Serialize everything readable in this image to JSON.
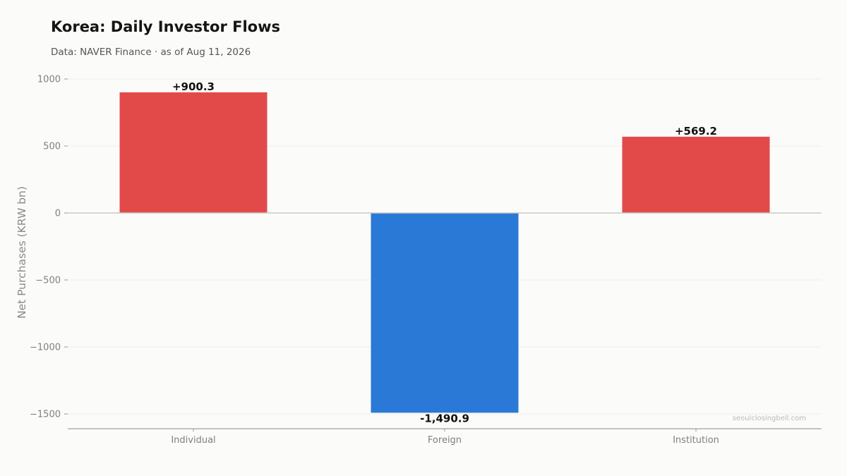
{
  "header": {
    "title": "Korea: Daily Investor Flows",
    "subtitle": "Data: NAVER Finance · as of Aug 11, 2026"
  },
  "watermark": "seoulclosingbell.com",
  "colors": {
    "positive": "#e24a4a",
    "negative": "#2a79d6",
    "grid": "#eeeeea",
    "zero_line": "#c9c9c4",
    "axis": "#8a8a8a"
  },
  "chart_data": {
    "type": "bar",
    "categories": [
      "Individual",
      "Foreign",
      "Institution"
    ],
    "values": [
      900.3,
      -1490.9,
      569.2
    ],
    "data_labels": [
      "+900.3",
      "-1,490.9",
      "+569.2"
    ],
    "title": "Korea: Daily Investor Flows",
    "subtitle": "Data: NAVER Finance · as of Aug 11, 2026",
    "xlabel": "",
    "ylabel": "Net Purchases (KRW bn)",
    "ylim": [
      -1600,
      1000
    ],
    "yticks": [
      1000,
      500,
      0,
      -500,
      -1000,
      -1500
    ],
    "ytick_labels": [
      "1000",
      "500",
      "0",
      "−500",
      "−1000",
      "−1500"
    ],
    "grid": true,
    "legend": "none"
  }
}
